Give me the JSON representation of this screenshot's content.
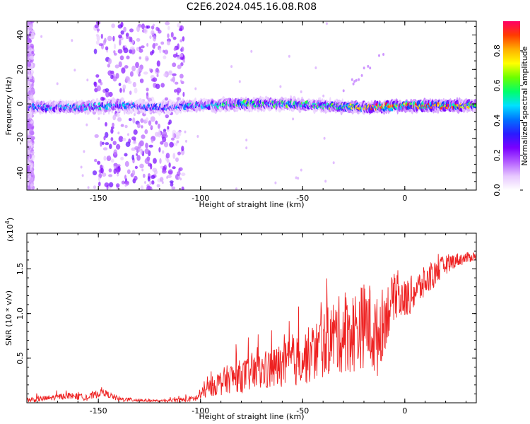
{
  "title": "C2E6.2024.045.16.08.R08",
  "chart_data": [
    {
      "type": "heatmap",
      "xlabel": "Height of straight line (km)",
      "ylabel": "Frequency (Hz)",
      "xlim": [
        -185,
        35
      ],
      "ylim": [
        -50,
        48
      ],
      "x_ticks": [
        -150,
        -100,
        -50,
        0
      ],
      "x_tick_labels": [
        "-150",
        "-100",
        "-50",
        "0"
      ],
      "y_ticks": [
        -40,
        -20,
        0,
        20,
        40
      ],
      "y_tick_labels": [
        "-40",
        "-20",
        "0",
        "20",
        "40"
      ],
      "colorbar": {
        "label": "Normalized spectral amplitude",
        "range": [
          0,
          0.97
        ],
        "ticks": [
          0.0,
          0.2,
          0.4,
          0.6,
          0.8
        ],
        "tick_labels": [
          "0.0",
          "0.2",
          "0.4",
          "0.6",
          "0.8"
        ],
        "colors": [
          "#ffffff",
          "#e7c8ff",
          "#b35cff",
          "#7a00ff",
          "#2a1bff",
          "#0072ff",
          "#00e0ff",
          "#00ff6a",
          "#6bff00",
          "#ffff00",
          "#ffb000",
          "#ff3b00",
          "#ff0066"
        ]
      },
      "ridge": {
        "description_values": "main spectral band near 0 Hz",
        "center_frequency_hz": [
          [
            -185,
            -2
          ],
          [
            -160,
            -2
          ],
          [
            -140,
            -1
          ],
          [
            -120,
            -2
          ],
          [
            -100,
            -1
          ],
          [
            -80,
            0
          ],
          [
            -60,
            0
          ],
          [
            -40,
            -1
          ],
          [
            -20,
            -2
          ],
          [
            0,
            -1
          ],
          [
            35,
            -1
          ]
        ],
        "peak_amplitude": [
          [
            -185,
            0.45
          ],
          [
            -150,
            0.5
          ],
          [
            -120,
            0.35
          ],
          [
            -100,
            0.5
          ],
          [
            -80,
            0.6
          ],
          [
            -60,
            0.6
          ],
          [
            -40,
            0.55
          ],
          [
            -15,
            0.85
          ],
          [
            0,
            0.9
          ],
          [
            10,
            0.95
          ],
          [
            25,
            0.9
          ],
          [
            35,
            0.6
          ]
        ]
      },
      "background_bands": [
        {
          "x_range": [
            -152,
            -108
          ],
          "amplitude": 0.15
        },
        {
          "x_range": [
            -185,
            -182
          ],
          "amplitude": 0.1
        }
      ]
    },
    {
      "type": "line",
      "xlabel": "Height of straight line (km)",
      "ylabel": "SNR (10 * v/v)",
      "y_multiplier_label": "(x10",
      "y_multiplier_exponent": "4",
      "y_multiplier_close": ")",
      "xlim": [
        -185,
        35
      ],
      "ylim": [
        0,
        1.9
      ],
      "x_ticks": [
        -150,
        -100,
        -50,
        0
      ],
      "x_tick_labels": [
        "-150",
        "-100",
        "-50",
        "0"
      ],
      "y_ticks": [
        0.5,
        1.0,
        1.5
      ],
      "y_tick_labels": [
        "0.5",
        "1.0",
        "1.5"
      ],
      "line_color": "#ee2222",
      "series": [
        {
          "values": [
            [
              -185,
              0.03
            ],
            [
              -175,
              0.05
            ],
            [
              -165,
              0.08
            ],
            [
              -155,
              0.06
            ],
            [
              -148,
              0.12
            ],
            [
              -140,
              0.04
            ],
            [
              -130,
              0.03
            ],
            [
              -120,
              0.02
            ],
            [
              -110,
              0.03
            ],
            [
              -102,
              0.05
            ],
            [
              -95,
              0.18
            ],
            [
              -85,
              0.28
            ],
            [
              -75,
              0.32
            ],
            [
              -65,
              0.38
            ],
            [
              -55,
              0.45
            ],
            [
              -45,
              0.55
            ],
            [
              -35,
              0.75
            ],
            [
              -25,
              0.8
            ],
            [
              -18,
              0.9
            ],
            [
              -14,
              0.7
            ],
            [
              -10,
              0.95
            ],
            [
              -5,
              1.2
            ],
            [
              0,
              1.15
            ],
            [
              5,
              1.25
            ],
            [
              10,
              1.35
            ],
            [
              15,
              1.45
            ],
            [
              20,
              1.55
            ],
            [
              25,
              1.6
            ],
            [
              30,
              1.62
            ],
            [
              35,
              1.65
            ]
          ],
          "noise": [
            [
              -185,
              0.03
            ],
            [
              -150,
              0.04
            ],
            [
              -120,
              0.01
            ],
            [
              -102,
              0.04
            ],
            [
              -90,
              0.15
            ],
            [
              -70,
              0.22
            ],
            [
              -50,
              0.3
            ],
            [
              -30,
              0.45
            ],
            [
              -15,
              0.5
            ],
            [
              -5,
              0.25
            ],
            [
              10,
              0.18
            ],
            [
              25,
              0.08
            ],
            [
              35,
              0.05
            ]
          ]
        }
      ]
    }
  ]
}
